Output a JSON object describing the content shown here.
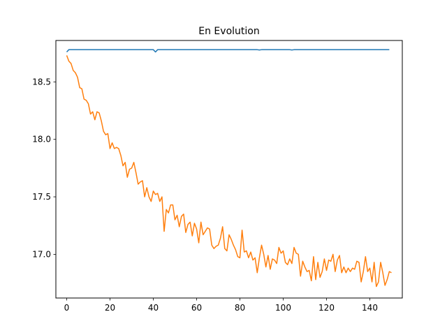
{
  "chart_data": {
    "type": "line",
    "title": "En Evolution",
    "xlabel": "",
    "ylabel": "",
    "xlim": [
      -5,
      155
    ],
    "ylim": [
      16.62,
      18.86
    ],
    "xticks": [
      0,
      20,
      40,
      60,
      80,
      100,
      120,
      140
    ],
    "yticks": [
      17.0,
      17.5,
      18.0,
      18.5
    ],
    "xtick_labels": [
      "0",
      "20",
      "40",
      "60",
      "80",
      "100",
      "120",
      "140"
    ],
    "ytick_labels": [
      "17.0",
      "17.5",
      "18.0",
      "18.5"
    ],
    "grid": false,
    "legend": "none",
    "series": [
      {
        "color": "#1f77b4",
        "x_start": 0,
        "values": [
          18.76,
          18.78,
          18.78,
          18.78,
          18.78,
          18.78,
          18.78,
          18.78,
          18.78,
          18.78,
          18.78,
          18.78,
          18.78,
          18.78,
          18.78,
          18.78,
          18.78,
          18.78,
          18.78,
          18.78,
          18.78,
          18.78,
          18.78,
          18.78,
          18.78,
          18.78,
          18.78,
          18.78,
          18.78,
          18.78,
          18.78,
          18.78,
          18.78,
          18.78,
          18.78,
          18.78,
          18.78,
          18.78,
          18.78,
          18.78,
          18.78,
          18.76,
          18.78,
          18.78,
          18.78,
          18.78,
          18.78,
          18.78,
          18.78,
          18.78,
          18.78,
          18.78,
          18.78,
          18.78,
          18.78,
          18.78,
          18.78,
          18.78,
          18.78,
          18.78,
          18.78,
          18.78,
          18.78,
          18.78,
          18.78,
          18.78,
          18.78,
          18.78,
          18.78,
          18.78,
          18.78,
          18.78,
          18.78,
          18.78,
          18.78,
          18.78,
          18.78,
          18.78,
          18.78,
          18.78,
          18.78,
          18.78,
          18.78,
          18.78,
          18.78,
          18.78,
          18.78,
          18.78,
          18.78,
          18.777,
          18.78,
          18.78,
          18.78,
          18.78,
          18.78,
          18.78,
          18.78,
          18.78,
          18.78,
          18.78,
          18.78,
          18.78,
          18.78,
          18.78,
          18.777,
          18.78,
          18.78,
          18.78,
          18.78,
          18.78,
          18.78,
          18.78,
          18.78,
          18.78,
          18.78,
          18.78,
          18.78,
          18.78,
          18.78,
          18.78,
          18.78,
          18.78,
          18.78,
          18.78,
          18.78,
          18.78,
          18.78,
          18.78,
          18.78,
          18.78,
          18.78,
          18.78,
          18.78,
          18.78,
          18.78,
          18.78,
          18.78,
          18.78,
          18.78,
          18.78,
          18.78,
          18.78,
          18.78,
          18.78,
          18.78,
          18.78,
          18.78,
          18.78,
          18.78,
          18.78
        ]
      },
      {
        "color": "#ff7f0e",
        "x_start": 0,
        "values": [
          18.73,
          18.68,
          18.66,
          18.6,
          18.58,
          18.54,
          18.45,
          18.44,
          18.35,
          18.34,
          18.31,
          18.22,
          18.24,
          18.17,
          18.24,
          18.23,
          18.16,
          18.07,
          18.04,
          18.05,
          17.92,
          17.97,
          17.92,
          17.93,
          17.92,
          17.86,
          17.77,
          17.8,
          17.67,
          17.74,
          17.75,
          17.8,
          17.71,
          17.61,
          17.63,
          17.64,
          17.5,
          17.58,
          17.5,
          17.46,
          17.55,
          17.52,
          17.53,
          17.46,
          17.5,
          17.2,
          17.39,
          17.36,
          17.43,
          17.43,
          17.3,
          17.34,
          17.24,
          17.33,
          17.35,
          17.19,
          17.26,
          17.28,
          17.16,
          17.27,
          17.22,
          17.1,
          17.28,
          17.17,
          17.2,
          17.23,
          17.22,
          17.08,
          17.05,
          17.07,
          17.08,
          17.14,
          17.24,
          17.05,
          17.03,
          17.17,
          17.13,
          17.08,
          17.04,
          16.98,
          16.97,
          17.21,
          17.02,
          17.03,
          16.97,
          17.02,
          16.95,
          16.97,
          16.84,
          16.97,
          17.08,
          17.0,
          16.89,
          16.99,
          16.87,
          16.96,
          16.95,
          16.92,
          17.06,
          17.01,
          17.03,
          16.93,
          16.91,
          16.96,
          16.92,
          17.06,
          17.01,
          17.0,
          16.81,
          16.94,
          16.89,
          16.85,
          16.86,
          16.77,
          16.98,
          16.78,
          16.93,
          16.8,
          16.85,
          16.96,
          16.86,
          16.95,
          16.94,
          17.0,
          16.85,
          16.95,
          16.99,
          16.84,
          16.89,
          16.84,
          16.88,
          16.85,
          16.88,
          16.87,
          16.94,
          16.93,
          16.76,
          16.85,
          16.98,
          16.85,
          16.88,
          16.76,
          16.93,
          16.72,
          16.76,
          16.93,
          16.84,
          16.73,
          16.78,
          16.85,
          16.84
        ]
      }
    ]
  }
}
